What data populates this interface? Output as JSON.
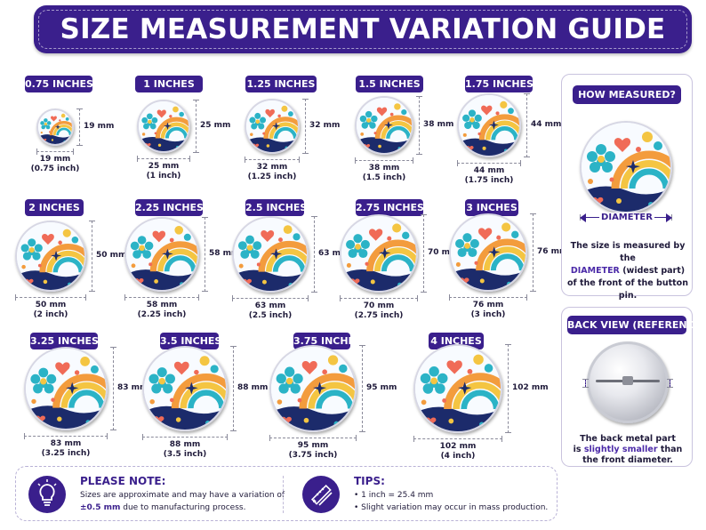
{
  "title": "SIZE MEASUREMENT VARIATION GUIDE",
  "sizes": [
    {
      "label": "0.75 INCHES",
      "mm": "19 mm",
      "mm_caption": "19 mm",
      "inch_caption": "(0.75 inch)"
    },
    {
      "label": "1 INCHES",
      "mm": "25 mm",
      "mm_caption": "25 mm",
      "inch_caption": "(1 inch)"
    },
    {
      "label": "1.25 INCHES",
      "mm": "32 mm",
      "mm_caption": "32 mm",
      "inch_caption": "(1.25 inch)"
    },
    {
      "label": "1.5 INCHES",
      "mm": "38 mm",
      "mm_caption": "38 mm",
      "inch_caption": "(1.5 inch)"
    },
    {
      "label": "1.75 INCHES",
      "mm": "44 mm",
      "mm_caption": "44 mm",
      "inch_caption": "(1.75 inch)"
    },
    {
      "label": "2 INCHES",
      "mm": "50 mm",
      "mm_caption": "50 mm",
      "inch_caption": "(2 inch)"
    },
    {
      "label": "2.25 INCHES",
      "mm": "58 mm",
      "mm_caption": "58 mm",
      "inch_caption": "(2.25 inch)"
    },
    {
      "label": "2.5 INCHES",
      "mm": "63 mm",
      "mm_caption": "63 mm",
      "inch_caption": "(2.5 inch)"
    },
    {
      "label": "2.75 INCHES",
      "mm": "70 mm",
      "mm_caption": "70 mm",
      "inch_caption": "(2.75 inch)"
    },
    {
      "label": "3 INCHES",
      "mm": "76 mm",
      "mm_caption": "76 mm",
      "inch_caption": "(3 inch)"
    },
    {
      "label": "3.25 INCHES",
      "mm": "83 mm",
      "mm_caption": "83 mm",
      "inch_caption": "(3.25 inch)"
    },
    {
      "label": "3.5 INCHES",
      "mm": "88 mm",
      "mm_caption": "88 mm",
      "inch_caption": "(3.5 inch)"
    },
    {
      "label": "3.75 INCHES",
      "mm": "95 mm",
      "mm_caption": "95 mm",
      "inch_caption": "(3.75 inch)"
    },
    {
      "label": "4 INCHES",
      "mm": "102 mm",
      "mm_caption": "102 mm",
      "inch_caption": "(4 inch)"
    }
  ],
  "how_measured": {
    "heading": "HOW MEASURED?",
    "diameter_label": "DIAMETER",
    "text_line1": "The size is measured by the",
    "text_highlight": "DIAMETER",
    "text_line2_rest": " (widest part)",
    "text_line3": "of the front of the button pin."
  },
  "back_view": {
    "heading": "BACK VIEW (REFERENCE)",
    "line1": "The back metal part",
    "line2_prefix": "is ",
    "line2_highlight": "slightly smaller",
    "line2_suffix": " than",
    "line3": "the front diameter."
  },
  "please_note": {
    "title": "PLEASE NOTE:",
    "line1": "Sizes are approximate and may have a variation of",
    "line2_highlight": "±0.5 mm",
    "line2_rest": " due to manufacturing process."
  },
  "tips": {
    "title": "TIPS:",
    "items": [
      "• 1 inch = 25.4 mm",
      "• Slight variation may occur in mass production."
    ]
  },
  "colors": {
    "brand_purple": "#3a1f8c",
    "accent_purple": "#4b2aa8",
    "pin_teal": "#2bb3c6",
    "pin_orange": "#f39c3d",
    "pin_yellow": "#f4c542",
    "pin_coral": "#f06b57",
    "pin_navy": "#1c2b6b"
  },
  "icons": [
    "lightbulb-icon",
    "ruler-pencil-icon"
  ]
}
